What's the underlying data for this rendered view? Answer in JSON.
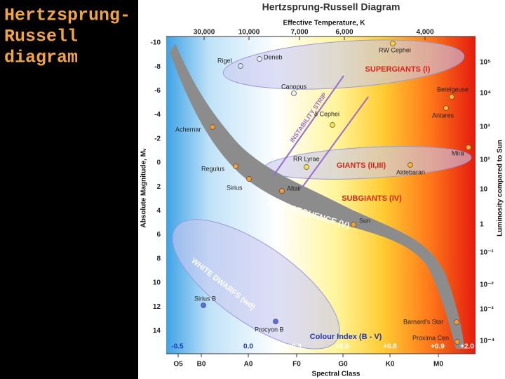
{
  "slide_title": [
    "Hertzsprung-",
    "Russell",
    "diagram"
  ],
  "diagram": {
    "title": "Hertzsprung-Russell Diagram",
    "temperature_title": "Effective Temperature, K",
    "temperature_ticks": [
      "30,000",
      "10,000",
      "7,000",
      "6,000",
      "4,000"
    ],
    "magnitude_title": "Absolute Magnitude, Mᵥ",
    "magnitude_ticks": [
      "-10",
      "-8",
      "-6",
      "-4",
      "-2",
      "0",
      "2",
      "4",
      "6",
      "8",
      "10",
      "12",
      "14"
    ],
    "luminosity_title": "Luminosity compared to Sun",
    "luminosity_ticks": [
      "10⁵",
      "10⁴",
      "10³",
      "10²",
      "10",
      "1",
      "10⁻¹",
      "10⁻²",
      "10⁻³",
      "10⁻⁴"
    ],
    "regions": [
      "SUPERGIANTS (I)",
      "GIANTS (II,III)",
      "SUBGIANTS (IV)",
      "MAIN SEQUENCE (V)",
      "WHITE DWARFS (wd)",
      "INSTABILITY STRIP"
    ],
    "stars": [
      "Rigel",
      "Deneb",
      "Canopus",
      "RW Cephei",
      "Betelgeuse",
      "Antares",
      "δ Cephei",
      "Achernar",
      "Mira",
      "RR Lyrae",
      "Aldebaran",
      "Regulus",
      "Sirius",
      "Altair",
      "Sun",
      "Sirius B",
      "Procyon B",
      "Barnard's Star",
      "Proxima Cen"
    ],
    "colour_index_title": "Colour Index (B - V)",
    "colour_index_ticks": [
      "-0.5",
      "0.0",
      "+0.3",
      "+0.6",
      "+0.8",
      "+0.9",
      "+2.0"
    ],
    "spectral_title": "Spectral Class",
    "spectral_classes": [
      "O5",
      "B0",
      "A0",
      "F0",
      "G0",
      "K0",
      "M0"
    ]
  }
}
